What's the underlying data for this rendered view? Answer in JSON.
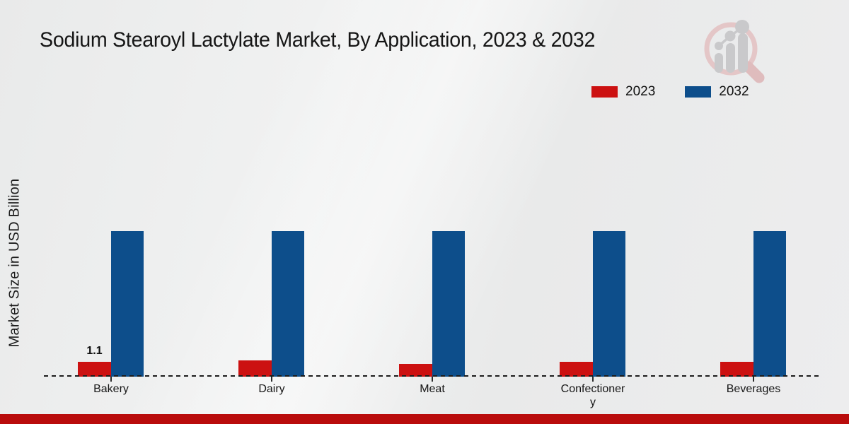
{
  "title": "Sodium Stearoyl Lactylate Market, By Application, 2023 & 2032",
  "ylabel": "Market Size in USD Billion",
  "legend": {
    "items": [
      {
        "label": "2023",
        "color": "#cc1111"
      },
      {
        "label": "2032",
        "color": "#0d4e8b"
      }
    ]
  },
  "watermark": {
    "name": "magnifier-bar-chart-logo"
  },
  "footer": {
    "color": "#b90c0c"
  },
  "chart_data": {
    "type": "bar",
    "title": "Sodium Stearoyl Lactylate Market, By Application, 2023 & 2032",
    "xlabel": "",
    "ylabel": "Market Size in USD Billion",
    "categories": [
      "Bakery",
      "Dairy",
      "Meat",
      "Confectionery",
      "Beverages"
    ],
    "series": [
      {
        "name": "2023",
        "color": "#cc1111",
        "values": [
          1.1,
          1.2,
          0.95,
          1.1,
          1.1
        ]
      },
      {
        "name": "2032",
        "color": "#0d4e8b",
        "values": [
          10.8,
          10.8,
          10.8,
          10.8,
          10.8
        ]
      }
    ],
    "data_labels": [
      [
        "1.1",
        null,
        null,
        null,
        null
      ],
      [
        null,
        null,
        null,
        null,
        null
      ]
    ],
    "ylim": [
      0,
      11
    ],
    "grid": false,
    "axis_ticks_visible": false,
    "baseline_style": "dashed",
    "legend_position": "top-right"
  }
}
